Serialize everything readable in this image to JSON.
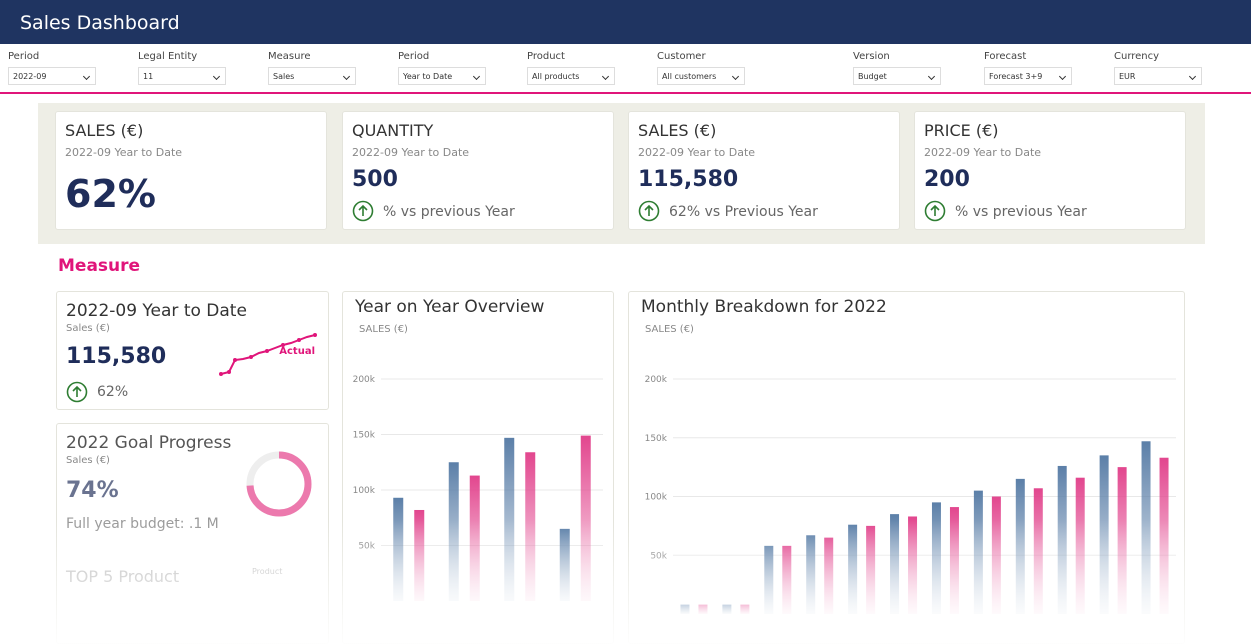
{
  "header": {
    "title": "Sales Dashboard"
  },
  "filters": [
    {
      "label": "Period",
      "value": "2022-09"
    },
    {
      "label": "Legal Entity",
      "value": "11"
    },
    {
      "label": "Measure",
      "value": "Sales"
    },
    {
      "label": "Period",
      "value": "Year to Date"
    },
    {
      "label": "Product",
      "value": "All products"
    },
    {
      "label": "Customer",
      "value": "All customers"
    },
    {
      "label": "Version",
      "value": "Budget"
    },
    {
      "label": "Forecast",
      "value": "Forecast 3+9"
    },
    {
      "label": "Currency",
      "value": "EUR"
    }
  ],
  "kpis": [
    {
      "title": "SALES (€)",
      "subtitle": "2022-09 Year to Date",
      "value": "62%"
    },
    {
      "title": "QUANTITY",
      "subtitle": "2022-09 Year to Date",
      "value": "500",
      "change": "% vs previous Year"
    },
    {
      "title": "SALES (€)",
      "subtitle": "2022-09 Year to Date",
      "value": "115,580",
      "change": "62% vs Previous Year"
    },
    {
      "title": "PRICE (€)",
      "subtitle": "2022-09 Year to Date",
      "value": "200",
      "change": "% vs previous Year"
    }
  ],
  "section": {
    "title": "Measure"
  },
  "ytd": {
    "title": "2022-09 Year to Date",
    "subtitle": "Sales (€)",
    "value": "115,580",
    "change": "62%",
    "sparkline_label": "Actual"
  },
  "goal": {
    "title": "2022 Goal Progress",
    "subtitle": "Sales (€)",
    "value": 74,
    "value_label": "74%",
    "note": "Full year budget: .1 M"
  },
  "top5": {
    "title": "TOP 5 Product",
    "dropdown": "Product"
  },
  "charts": [
    {
      "type": "bar",
      "title": "Year on Year Overview",
      "ylabel": "SALES (€)",
      "categories": [
        null,
        null,
        null,
        null
      ],
      "series": [
        {
          "color": "#5b7fa8",
          "values": [
            93000,
            125000,
            147000,
            65000
          ]
        },
        {
          "color": "#e2468e",
          "values": [
            82000,
            113000,
            134000,
            149000
          ]
        }
      ],
      "ylim": [
        0,
        200000
      ],
      "yticks": [
        {
          "value": 50000,
          "label": "50k"
        },
        {
          "value": 100000,
          "label": "100k"
        },
        {
          "value": 150000,
          "label": "150k"
        },
        {
          "value": 200000,
          "label": "200k"
        }
      ],
      "grid": true
    },
    {
      "type": "bar",
      "title": "Monthly Breakdown for 2022",
      "ylabel": "SALES (€)",
      "categories": [
        null,
        null,
        null,
        null,
        null,
        null,
        null,
        null,
        null,
        null,
        null,
        null
      ],
      "series": [
        {
          "color": "#5b7fa8",
          "values": [
            8000,
            8000,
            58000,
            67000,
            76000,
            85000,
            95000,
            105000,
            115000,
            126000,
            135000,
            147000
          ]
        },
        {
          "color": "#e2468e",
          "values": [
            8000,
            8000,
            58000,
            65000,
            75000,
            83000,
            91000,
            100000,
            107000,
            116000,
            125000,
            133000
          ]
        }
      ],
      "ylim": [
        0,
        200000
      ],
      "yticks": [
        {
          "value": 50000,
          "label": "50k"
        },
        {
          "value": 100000,
          "label": "100k"
        },
        {
          "value": 150000,
          "label": "150k"
        },
        {
          "value": 200000,
          "label": "200k"
        }
      ],
      "grid": true
    }
  ]
}
